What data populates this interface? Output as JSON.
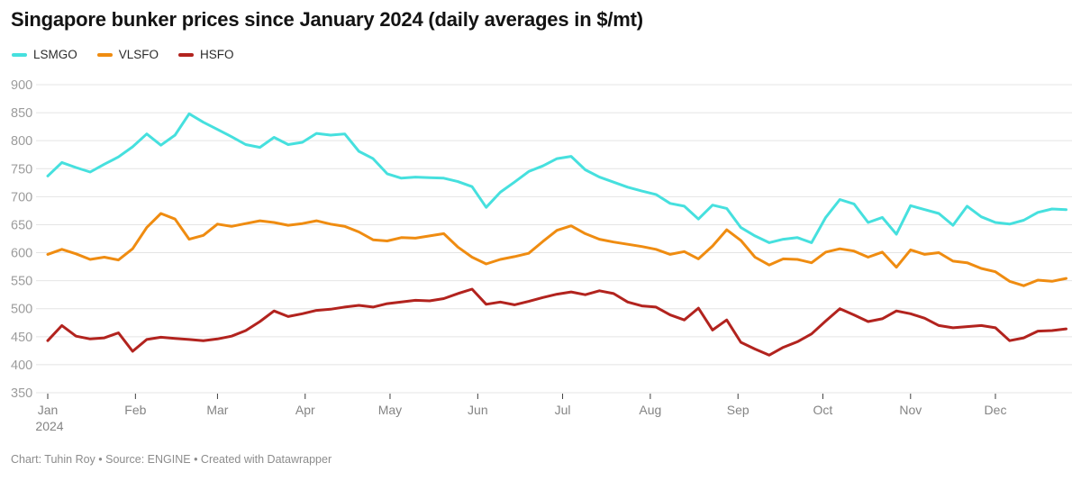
{
  "meta": {
    "title": "Singapore bunker prices since January 2024 (daily averages in $/mt)",
    "footer": "Chart: Tuhin Roy • Source: ENGINE • Created with Datawrapper"
  },
  "chart_data": {
    "type": "line",
    "title": "Singapore bunker prices since January 2024 (daily averages in $/mt)",
    "unit": "$/mt",
    "xlabel": "",
    "ylabel": "",
    "ylim": [
      350,
      900
    ],
    "y_ticks": [
      900,
      850,
      800,
      750,
      700,
      650,
      600,
      550,
      500,
      450,
      400,
      350
    ],
    "x_tick_months": [
      "Jan",
      "Feb",
      "Mar",
      "Apr",
      "May",
      "Jun",
      "Jul",
      "Aug",
      "Sep",
      "Oct",
      "Nov",
      "Dec"
    ],
    "year_label": "2024",
    "grid": true,
    "legend_position": "top-left",
    "dates": [
      "2024-01-01",
      "2024-01-06",
      "2024-01-11",
      "2024-01-16",
      "2024-01-21",
      "2024-01-26",
      "2024-01-31",
      "2024-02-05",
      "2024-02-10",
      "2024-02-15",
      "2024-02-20",
      "2024-02-25",
      "2024-03-01",
      "2024-03-06",
      "2024-03-11",
      "2024-03-16",
      "2024-03-21",
      "2024-03-26",
      "2024-03-31",
      "2024-04-05",
      "2024-04-10",
      "2024-04-15",
      "2024-04-20",
      "2024-04-25",
      "2024-04-30",
      "2024-05-05",
      "2024-05-10",
      "2024-05-15",
      "2024-05-20",
      "2024-05-25",
      "2024-05-30",
      "2024-06-04",
      "2024-06-09",
      "2024-06-14",
      "2024-06-19",
      "2024-06-24",
      "2024-06-29",
      "2024-07-04",
      "2024-07-09",
      "2024-07-14",
      "2024-07-19",
      "2024-07-24",
      "2024-07-29",
      "2024-08-03",
      "2024-08-08",
      "2024-08-13",
      "2024-08-18",
      "2024-08-23",
      "2024-08-28",
      "2024-09-02",
      "2024-09-07",
      "2024-09-12",
      "2024-09-17",
      "2024-09-22",
      "2024-09-27",
      "2024-10-02",
      "2024-10-07",
      "2024-10-12",
      "2024-10-17",
      "2024-10-22",
      "2024-10-27",
      "2024-11-01",
      "2024-11-06",
      "2024-11-11",
      "2024-11-16",
      "2024-11-21",
      "2024-11-26",
      "2024-12-01",
      "2024-12-06",
      "2024-12-11",
      "2024-12-16",
      "2024-12-21",
      "2024-12-26"
    ],
    "series": [
      {
        "name": "LSMGO",
        "color": "#46E0DE",
        "values": [
          737,
          761,
          752,
          744,
          758,
          771,
          789,
          812,
          792,
          810,
          848,
          833,
          820,
          807,
          793,
          788,
          806,
          793,
          797,
          813,
          810,
          812,
          781,
          768,
          741,
          733,
          735,
          734,
          733,
          727,
          718,
          681,
          708,
          726,
          745,
          755,
          768,
          772,
          748,
          735,
          726,
          717,
          710,
          704,
          688,
          683,
          660,
          685,
          679,
          645,
          630,
          618,
          624,
          627,
          618,
          663,
          695,
          687,
          654,
          663,
          633,
          684,
          677,
          670,
          649,
          683,
          664,
          654,
          651,
          658,
          672,
          678,
          677
        ]
      },
      {
        "name": "VLSFO",
        "color": "#EF8C11",
        "values": [
          597,
          606,
          598,
          588,
          592,
          587,
          607,
          645,
          670,
          660,
          624,
          631,
          651,
          647,
          652,
          657,
          654,
          649,
          652,
          657,
          651,
          647,
          637,
          623,
          621,
          627,
          626,
          630,
          634,
          610,
          592,
          580,
          588,
          593,
          599,
          620,
          640,
          648,
          634,
          624,
          619,
          615,
          611,
          606,
          597,
          602,
          589,
          612,
          641,
          622,
          592,
          578,
          589,
          588,
          582,
          601,
          607,
          603,
          592,
          601,
          574,
          605,
          597,
          600,
          585,
          582,
          572,
          566,
          549,
          541,
          551,
          549,
          554
        ]
      },
      {
        "name": "HSFO",
        "color": "#B2231E",
        "values": [
          443,
          470,
          451,
          446,
          448,
          457,
          424,
          445,
          449,
          447,
          445,
          443,
          446,
          451,
          461,
          477,
          496,
          486,
          491,
          497,
          499,
          503,
          506,
          503,
          509,
          512,
          515,
          514,
          518,
          527,
          535,
          508,
          512,
          507,
          513,
          520,
          526,
          530,
          525,
          532,
          527,
          512,
          505,
          503,
          489,
          480,
          501,
          462,
          480,
          440,
          428,
          417,
          431,
          441,
          455,
          478,
          500,
          489,
          477,
          482,
          496,
          491,
          483,
          470,
          466,
          468,
          470,
          466,
          443,
          448,
          460,
          461,
          464
        ]
      }
    ]
  }
}
